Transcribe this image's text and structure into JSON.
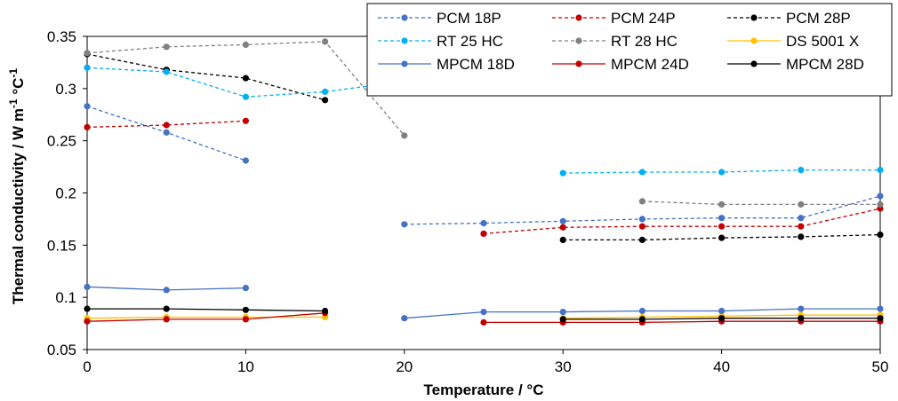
{
  "chart_data": {
    "type": "line",
    "title": "",
    "xlabel": "Temperature / °C",
    "ylabel": "Thermal conductivity / W m-1 °C-1",
    "xlim": [
      0,
      50
    ],
    "ylim": [
      0.05,
      0.35
    ],
    "xticks": [
      0,
      10,
      20,
      30,
      40,
      50
    ],
    "yticks": [
      0.05,
      0.1,
      0.15,
      0.2,
      0.25,
      0.3,
      0.35
    ],
    "grid": false,
    "legend_position": "top-right",
    "series": [
      {
        "name": "PCM 18P",
        "color": "#4472C4",
        "dash": true,
        "segments": [
          [
            [
              0,
              0.283
            ],
            [
              5,
              0.258
            ],
            [
              10,
              0.231
            ]
          ],
          [
            [
              20,
              0.17
            ],
            [
              25,
              0.171
            ],
            [
              30,
              0.173
            ],
            [
              35,
              0.175
            ],
            [
              40,
              0.176
            ],
            [
              45,
              0.176
            ],
            [
              50,
              0.197
            ]
          ]
        ]
      },
      {
        "name": "PCM 24P",
        "color": "#C00000",
        "dash": true,
        "segments": [
          [
            [
              0,
              0.263
            ],
            [
              5,
              0.265
            ],
            [
              10,
              0.269
            ]
          ],
          [
            [
              25,
              0.161
            ],
            [
              30,
              0.167
            ],
            [
              35,
              0.168
            ],
            [
              40,
              0.168
            ],
            [
              45,
              0.168
            ],
            [
              50,
              0.185
            ]
          ]
        ]
      },
      {
        "name": "PCM 28P",
        "color": "#000000",
        "dash": true,
        "segments": [
          [
            [
              0,
              0.333
            ],
            [
              5,
              0.318
            ],
            [
              10,
              0.31
            ],
            [
              15,
              0.289
            ]
          ],
          [
            [
              30,
              0.155
            ],
            [
              35,
              0.155
            ],
            [
              40,
              0.157
            ],
            [
              45,
              0.158
            ],
            [
              50,
              0.16
            ]
          ]
        ]
      },
      {
        "name": "RT 25 HC",
        "color": "#00B0F0",
        "dash": true,
        "segments": [
          [
            [
              0,
              0.32
            ],
            [
              5,
              0.316
            ],
            [
              10,
              0.292
            ],
            [
              15,
              0.297
            ],
            [
              20,
              0.307
            ]
          ],
          [
            [
              30,
              0.219
            ],
            [
              35,
              0.22
            ],
            [
              40,
              0.22
            ],
            [
              45,
              0.222
            ],
            [
              50,
              0.222
            ]
          ]
        ]
      },
      {
        "name": "RT 28 HC",
        "color": "#808080",
        "dash": true,
        "segments": [
          [
            [
              0,
              0.334
            ],
            [
              5,
              0.34
            ],
            [
              10,
              0.342
            ],
            [
              15,
              0.345
            ],
            [
              20,
              0.255
            ]
          ],
          [
            [
              35,
              0.192
            ],
            [
              40,
              0.189
            ],
            [
              45,
              0.189
            ],
            [
              50,
              0.189
            ]
          ]
        ]
      },
      {
        "name": "DS 5001 X",
        "color": "#FFC000",
        "dash": false,
        "segments": [
          [
            [
              0,
              0.08
            ],
            [
              5,
              0.081
            ],
            [
              10,
              0.081
            ],
            [
              15,
              0.081
            ]
          ],
          [
            [
              30,
              0.08
            ],
            [
              35,
              0.081
            ],
            [
              40,
              0.082
            ],
            [
              45,
              0.083
            ],
            [
              50,
              0.083
            ]
          ]
        ]
      },
      {
        "name": "MPCM 18D",
        "color": "#4472C4",
        "dash": false,
        "segments": [
          [
            [
              0,
              0.11
            ],
            [
              5,
              0.107
            ],
            [
              10,
              0.109
            ]
          ],
          [
            [
              20,
              0.08
            ],
            [
              25,
              0.086
            ],
            [
              30,
              0.086
            ],
            [
              35,
              0.087
            ],
            [
              40,
              0.087
            ],
            [
              45,
              0.089
            ],
            [
              50,
              0.089
            ]
          ]
        ]
      },
      {
        "name": "MPCM 24D",
        "color": "#C00000",
        "dash": false,
        "segments": [
          [
            [
              0,
              0.077
            ],
            [
              5,
              0.079
            ],
            [
              10,
              0.079
            ],
            [
              15,
              0.085
            ]
          ],
          [
            [
              25,
              0.076
            ],
            [
              30,
              0.076
            ],
            [
              35,
              0.076
            ],
            [
              40,
              0.077
            ],
            [
              45,
              0.077
            ],
            [
              50,
              0.077
            ]
          ]
        ]
      },
      {
        "name": "MPCM 28D",
        "color": "#000000",
        "dash": false,
        "segments": [
          [
            [
              0,
              0.089
            ],
            [
              5,
              0.089
            ],
            [
              10,
              0.088
            ],
            [
              15,
              0.087
            ]
          ],
          [
            [
              30,
              0.079
            ],
            [
              35,
              0.079
            ],
            [
              40,
              0.08
            ],
            [
              45,
              0.08
            ],
            [
              50,
              0.08
            ]
          ]
        ]
      }
    ]
  }
}
